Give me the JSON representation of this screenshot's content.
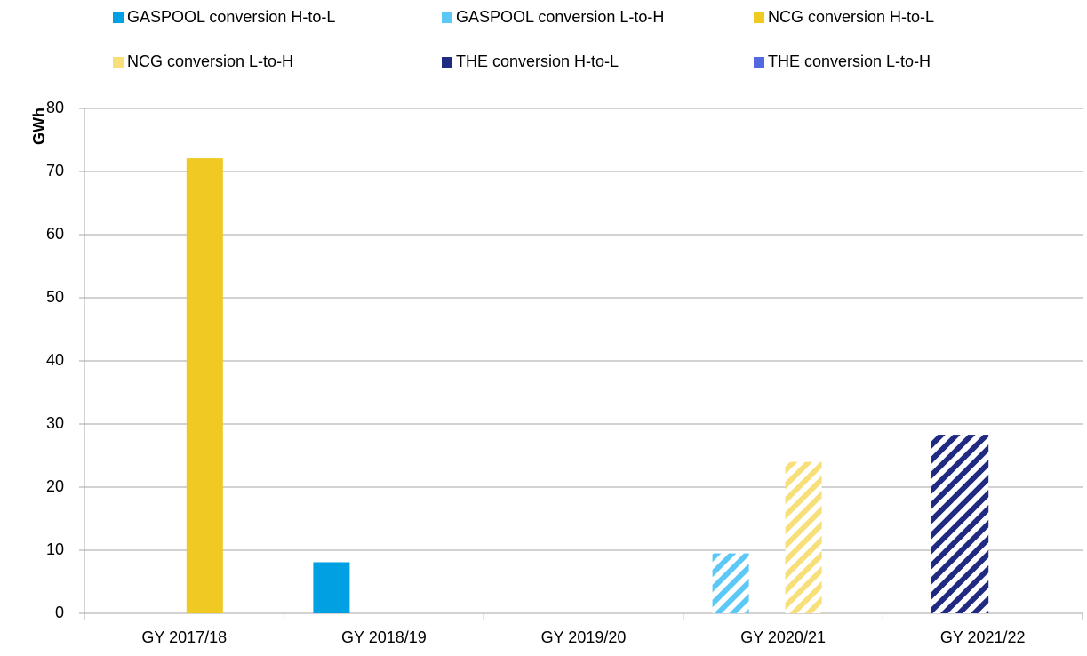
{
  "chart_data": {
    "type": "bar",
    "y_label": "GWh",
    "categories": [
      "GY 2017/18",
      "GY 2018/19",
      "GY 2019/20",
      "GY 2020/21",
      "GY 2021/22"
    ],
    "series": [
      {
        "name": "GASPOOL conversion H-to-L",
        "color": "#00a0e3",
        "values": [
          null,
          8.1,
          null,
          null,
          null
        ]
      },
      {
        "name": "GASPOOL conversion L-to-H",
        "color": "#5bc8f5",
        "values": [
          null,
          null,
          null,
          9.5,
          null
        ]
      },
      {
        "name": "NCG conversion H-to-L",
        "color": "#f0c922",
        "values": [
          72.1,
          null,
          null,
          null,
          null
        ]
      },
      {
        "name": "NCG conversion L-to-H",
        "color": "#f7df7a",
        "values": [
          null,
          null,
          null,
          24,
          null
        ]
      },
      {
        "name": "THE conversion H-to-L",
        "color": "#1f2a80",
        "values": [
          null,
          null,
          null,
          null,
          28.3
        ]
      },
      {
        "name": "THE conversion L-to-H",
        "color": "#5468e0",
        "values": [
          null,
          null,
          null,
          null,
          null
        ]
      }
    ],
    "ylim": [
      0,
      80
    ],
    "yticks": [
      0,
      10,
      20,
      30,
      40,
      50,
      60,
      70,
      80
    ],
    "grid": true
  }
}
